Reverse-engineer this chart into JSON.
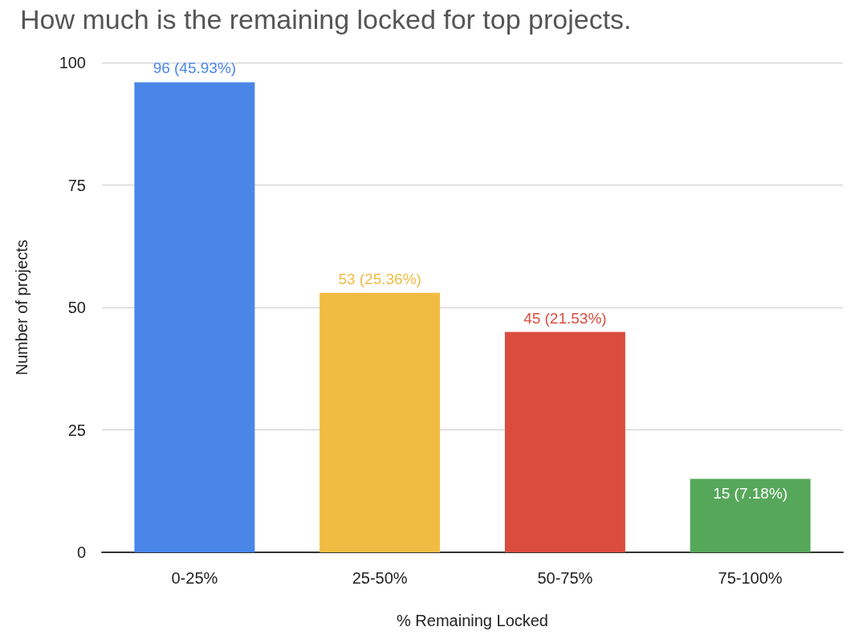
{
  "chart_data": {
    "type": "bar",
    "title": "How much is the remaining locked for top projects.",
    "xlabel": "% Remaining Locked",
    "ylabel": "Number of projects",
    "categories": [
      "0-25%",
      "25-50%",
      "50-75%",
      "75-100%"
    ],
    "values": [
      96,
      53,
      45,
      15
    ],
    "colors": [
      "#4a86e8",
      "#f1bc42",
      "#db4c3f",
      "#57a75b"
    ],
    "value_labels": [
      "96 (45.93%)",
      "53 (25.36%)",
      "45 (21.53%)",
      "15 (7.18%)"
    ],
    "ylim": [
      0,
      100
    ],
    "yticks": [
      0,
      25,
      50,
      75,
      100
    ],
    "grid": "y"
  }
}
